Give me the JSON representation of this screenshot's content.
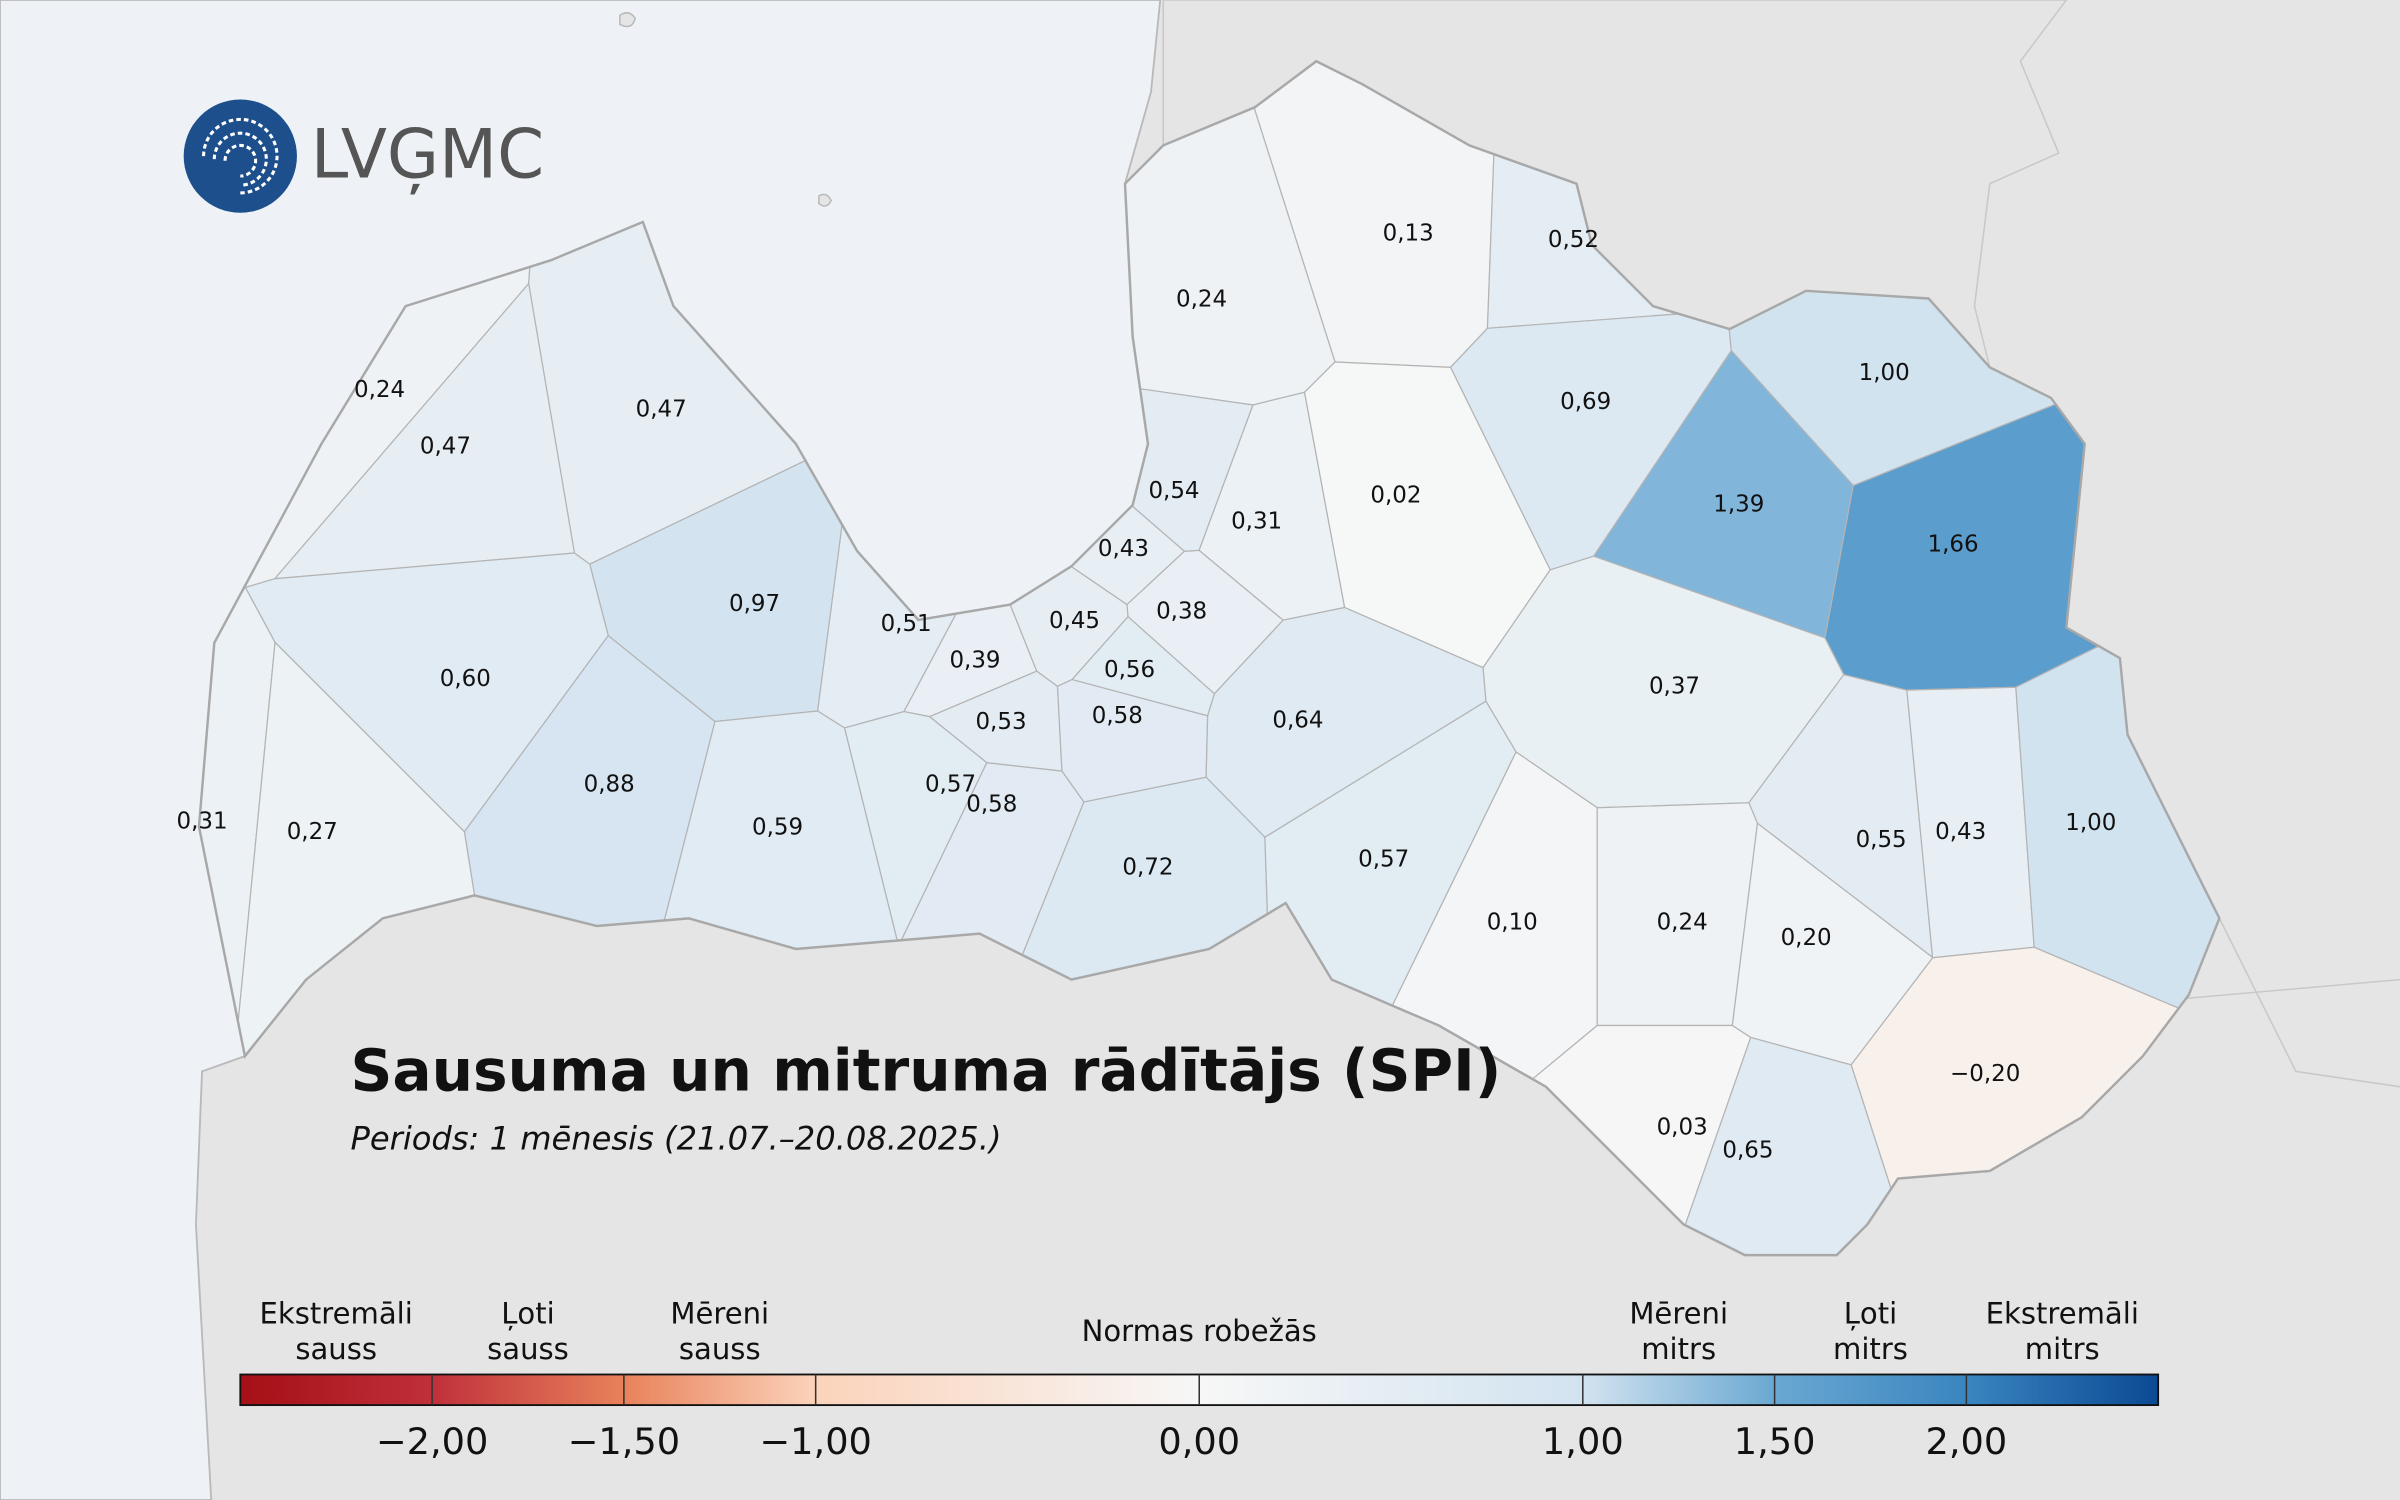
{
  "logo": "LVĢMC",
  "title": "Sausuma un mitruma rādītājs (SPI)",
  "subtitle": "Periods: 1 mēnesis (21.07.–20.08.2025.)",
  "regions": [
    {
      "value": 0.13,
      "label": "0,13"
    },
    {
      "value": 0.52,
      "label": "0,52"
    },
    {
      "value": 0.24,
      "label": "0,24"
    },
    {
      "value": 0.24,
      "label": "0,24"
    },
    {
      "value": 0.47,
      "label": "0,47"
    },
    {
      "value": 0.47,
      "label": "0,47"
    },
    {
      "value": 0.69,
      "label": "0,69"
    },
    {
      "value": 1.0,
      "label": "1,00"
    },
    {
      "value": 0.54,
      "label": "0,54"
    },
    {
      "value": 0.31,
      "label": "0,31"
    },
    {
      "value": 0.02,
      "label": "0,02"
    },
    {
      "value": 1.39,
      "label": "1,39"
    },
    {
      "value": 1.66,
      "label": "1,66"
    },
    {
      "value": 0.43,
      "label": "0,43"
    },
    {
      "value": 0.97,
      "label": "0,97"
    },
    {
      "value": 0.51,
      "label": "0,51"
    },
    {
      "value": 0.45,
      "label": "0,45"
    },
    {
      "value": 0.38,
      "label": "0,38"
    },
    {
      "value": 0.39,
      "label": "0,39"
    },
    {
      "value": 0.56,
      "label": "0,56"
    },
    {
      "value": 0.6,
      "label": "0,60"
    },
    {
      "value": 0.37,
      "label": "0,37"
    },
    {
      "value": 0.53,
      "label": "0,53"
    },
    {
      "value": 0.58,
      "label": "0,58"
    },
    {
      "value": 0.64,
      "label": "0,64"
    },
    {
      "value": 0.88,
      "label": "0,88"
    },
    {
      "value": 0.59,
      "label": "0,59"
    },
    {
      "value": 0.57,
      "label": "0,57"
    },
    {
      "value": 0.58,
      "label": "0,58"
    },
    {
      "value": 0.31,
      "label": "0,31"
    },
    {
      "value": 0.27,
      "label": "0,27"
    },
    {
      "value": 0.55,
      "label": "0,55"
    },
    {
      "value": 0.43,
      "label": "0,43"
    },
    {
      "value": 1.0,
      "label": "1,00"
    },
    {
      "value": 0.72,
      "label": "0,72"
    },
    {
      "value": 0.57,
      "label": "0,57"
    },
    {
      "value": 0.1,
      "label": "0,10"
    },
    {
      "value": 0.24,
      "label": "0,24"
    },
    {
      "value": 0.2,
      "label": "0,20"
    },
    {
      "value": -0.2,
      "label": "−0,20"
    },
    {
      "value": 0.03,
      "label": "0,03"
    },
    {
      "value": 0.65,
      "label": "0,65"
    }
  ],
  "legend": {
    "range": [
      -2.5,
      2.5
    ],
    "ticks": [
      {
        "value": -2,
        "label": "−2,00"
      },
      {
        "value": -1.5,
        "label": "−1,50"
      },
      {
        "value": -1,
        "label": "−1,00"
      },
      {
        "value": 0,
        "label": "0,00"
      },
      {
        "value": 1,
        "label": "1,00"
      },
      {
        "value": 1.5,
        "label": "1,50"
      },
      {
        "value": 2,
        "label": "2,00"
      }
    ],
    "classes": [
      {
        "lines": [
          "Ekstremāli",
          "sauss"
        ],
        "from": -2.5,
        "to": -2
      },
      {
        "lines": [
          "Ļoti",
          "sauss"
        ],
        "from": -2,
        "to": -1.5
      },
      {
        "lines": [
          "Mēreni",
          "sauss"
        ],
        "from": -1.5,
        "to": -1
      },
      {
        "lines": [
          "Normas robežās"
        ],
        "from": -1,
        "to": 1
      },
      {
        "lines": [
          "Mēreni",
          "mitrs"
        ],
        "from": 1,
        "to": 1.5
      },
      {
        "lines": [
          "Ļoti",
          "mitrs"
        ],
        "from": 1.5,
        "to": 2
      },
      {
        "lines": [
          "Ekstremāli",
          "mitrs"
        ],
        "from": 2,
        "to": 2.5
      }
    ],
    "colorscale": [
      {
        "value": -2.5,
        "color": "#a50f15"
      },
      {
        "value": -2,
        "color": "#c0303a"
      },
      {
        "value": -1.5,
        "color": "#e8825b"
      },
      {
        "value": -1,
        "color": "#fbd3bb"
      },
      {
        "value": 0,
        "color": "#f7f7f7"
      },
      {
        "value": 1,
        "color": "#d2e3f0"
      },
      {
        "value": 1.5,
        "color": "#6aa8d2"
      },
      {
        "value": 2,
        "color": "#3a85c0"
      },
      {
        "value": 2.5,
        "color": "#0b4a93"
      }
    ]
  }
}
